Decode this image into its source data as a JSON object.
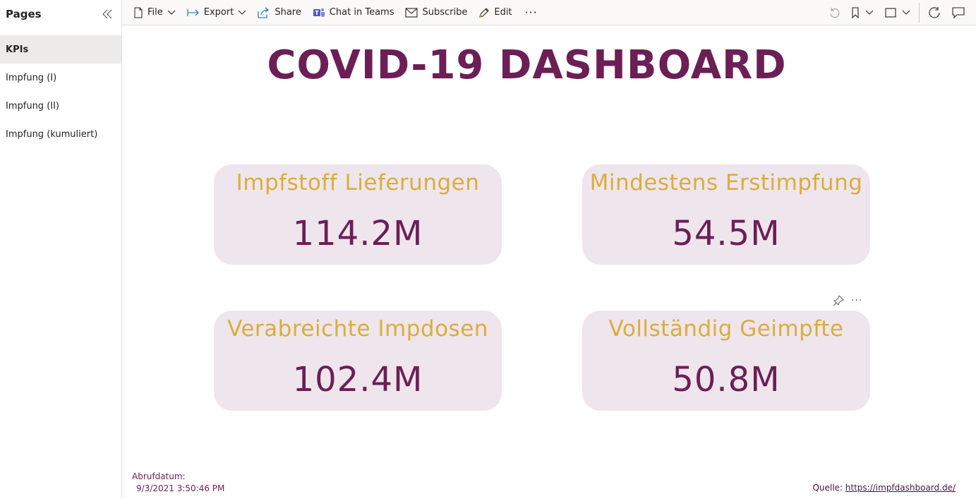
{
  "sidebar": {
    "title": "Pages",
    "items": [
      {
        "label": "KPIs",
        "active": true
      },
      {
        "label": "Impfung (I)",
        "active": false
      },
      {
        "label": "Impfung (II)",
        "active": false
      },
      {
        "label": "Impfung (kumuliert)",
        "active": false
      }
    ]
  },
  "toolbar": {
    "file_label": "File",
    "export_label": "Export",
    "share_label": "Share",
    "teams_label": "Chat in Teams",
    "subscribe_label": "Subscribe",
    "edit_label": "Edit",
    "more_label": "···"
  },
  "dashboard": {
    "title": "COVID-19 DASHBOARD",
    "cards": [
      {
        "label": "Impfstoff Lieferungen",
        "value": "114.2M"
      },
      {
        "label": "Mindestens Erstimpfung",
        "value": "54.5M"
      },
      {
        "label": "Verabreichte Impdosen",
        "value": "102.4M"
      },
      {
        "label": "Vollständig Geimpfte",
        "value": "50.8M"
      }
    ],
    "visual_more": "···"
  },
  "footer": {
    "retrieval_label": "Abrufdatum:",
    "retrieval_date": "9/3/2021 3:50:46 PM",
    "source_label": "Quelle: ",
    "source_link": "https://impfdashboard.de/"
  },
  "colors": {
    "title": "#6b1f55",
    "card_label": "#d9ae3c",
    "card_bg": "#efe5ec"
  }
}
